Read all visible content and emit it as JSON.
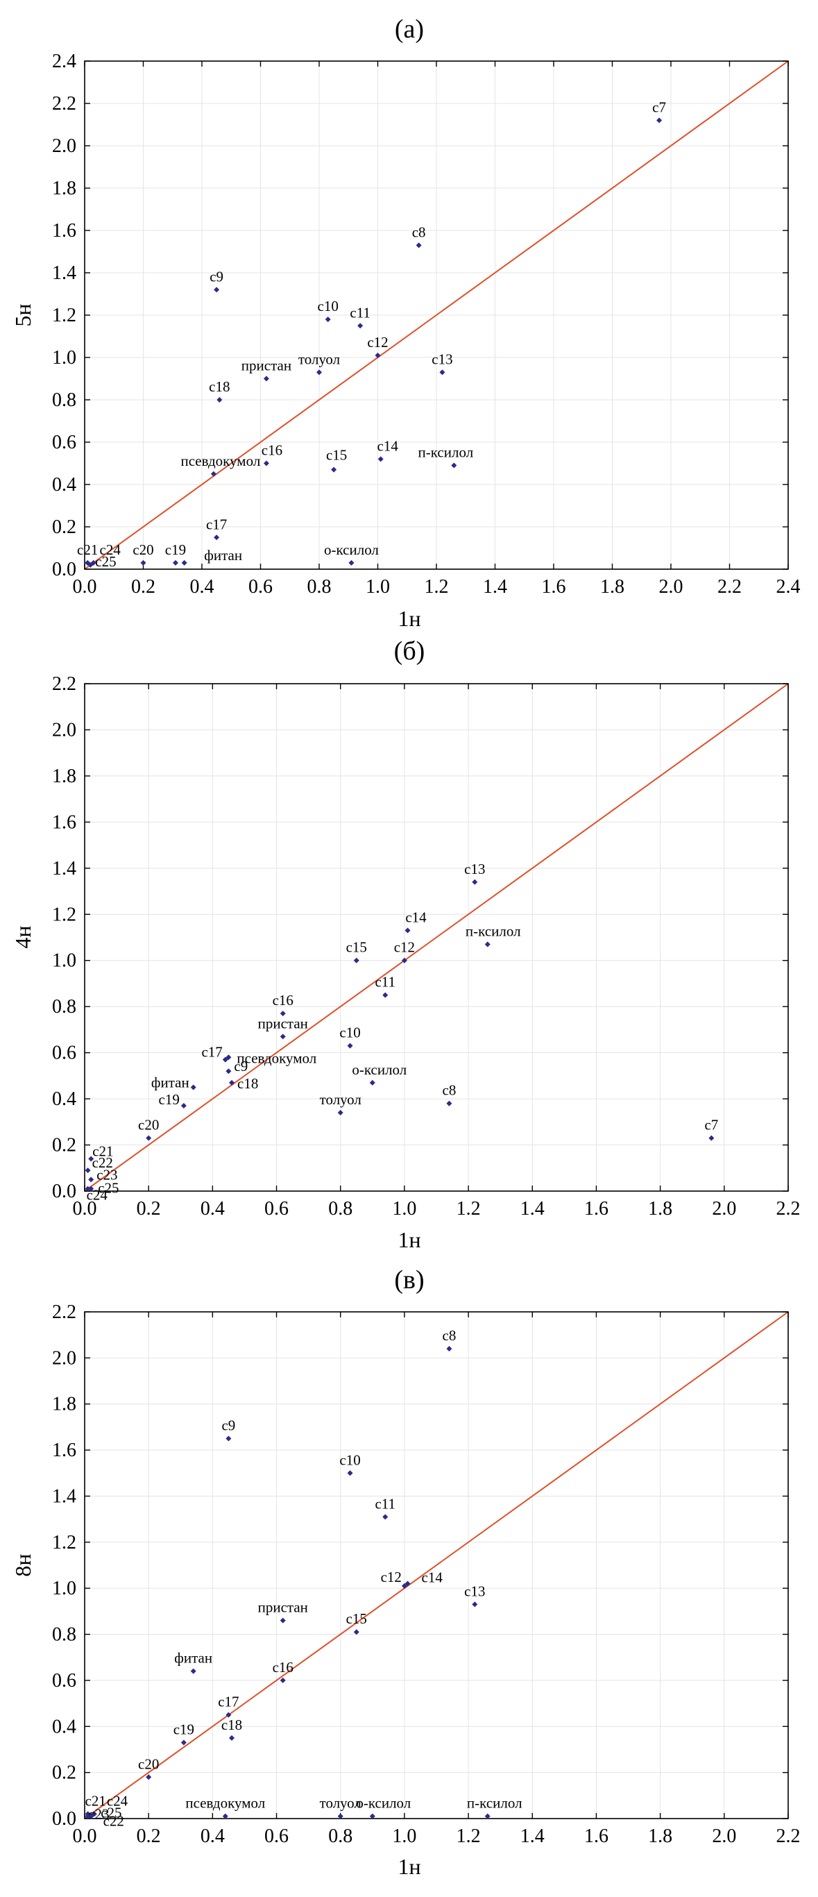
{
  "chart_data": [
    {
      "type": "scatter",
      "panel_label": "(а)",
      "xlabel": "1н",
      "ylabel": "5н",
      "xlim": [
        0,
        2.4
      ],
      "ylim": [
        0,
        2.4
      ],
      "xticks": [
        0.0,
        0.2,
        0.4,
        0.6,
        0.8,
        1.0,
        1.2,
        1.4,
        1.6,
        1.8,
        2.0,
        2.2,
        2.4
      ],
      "yticks": [
        0.0,
        0.2,
        0.4,
        0.6,
        0.8,
        1.0,
        1.2,
        1.4,
        1.6,
        1.8,
        2.0,
        2.2,
        2.4
      ],
      "grid": true,
      "reference_line": "y=x",
      "point_color": "#2b2b8a",
      "line_color": "#e0502a",
      "points": [
        {
          "label": "c7",
          "x": 1.96,
          "y": 2.12
        },
        {
          "label": "c8",
          "x": 1.14,
          "y": 1.53
        },
        {
          "label": "c9",
          "x": 0.45,
          "y": 1.32
        },
        {
          "label": "c10",
          "x": 0.83,
          "y": 1.18
        },
        {
          "label": "c11",
          "x": 0.94,
          "y": 1.15
        },
        {
          "label": "c12",
          "x": 1.0,
          "y": 1.01
        },
        {
          "label": "c13",
          "x": 1.22,
          "y": 0.93
        },
        {
          "label": "толуол",
          "x": 0.8,
          "y": 0.93
        },
        {
          "label": "пристан",
          "x": 0.62,
          "y": 0.9
        },
        {
          "label": "c18",
          "x": 0.46,
          "y": 0.8
        },
        {
          "label": "c14",
          "x": 1.01,
          "y": 0.52
        },
        {
          "label": "c16",
          "x": 0.62,
          "y": 0.5
        },
        {
          "label": "п-ксилол",
          "x": 1.26,
          "y": 0.49
        },
        {
          "label": "c15",
          "x": 0.85,
          "y": 0.47
        },
        {
          "label": "псевдокумол",
          "x": 0.44,
          "y": 0.45
        },
        {
          "label": "c17",
          "x": 0.45,
          "y": 0.15
        },
        {
          "label": "о-ксилол",
          "x": 0.91,
          "y": 0.03
        },
        {
          "label": "фитан",
          "x": 0.34,
          "y": 0.03
        },
        {
          "label": "c19",
          "x": 0.31,
          "y": 0.03
        },
        {
          "label": "c20",
          "x": 0.2,
          "y": 0.03
        },
        {
          "label": "c21",
          "x": 0.01,
          "y": 0.03
        },
        {
          "label": "c24",
          "x": 0.03,
          "y": 0.03
        },
        {
          "label": "c25",
          "x": 0.02,
          "y": 0.02
        }
      ]
    },
    {
      "type": "scatter",
      "panel_label": "(б)",
      "xlabel": "1н",
      "ylabel": "4н",
      "xlim": [
        0,
        2.2
      ],
      "ylim": [
        0,
        2.2
      ],
      "xticks": [
        0.0,
        0.2,
        0.4,
        0.6,
        0.8,
        1.0,
        1.2,
        1.4,
        1.6,
        1.8,
        2.0,
        2.2
      ],
      "yticks": [
        0.0,
        0.2,
        0.4,
        0.6,
        0.8,
        1.0,
        1.2,
        1.4,
        1.6,
        1.8,
        2.0,
        2.2
      ],
      "grid": true,
      "reference_line": "y=x",
      "point_color": "#2b2b8a",
      "line_color": "#e0502a",
      "points": [
        {
          "label": "c13",
          "x": 1.22,
          "y": 1.34
        },
        {
          "label": "c14",
          "x": 1.01,
          "y": 1.13
        },
        {
          "label": "п-ксилол",
          "x": 1.26,
          "y": 1.07
        },
        {
          "label": "c15",
          "x": 0.85,
          "y": 1.0
        },
        {
          "label": "c12",
          "x": 1.0,
          "y": 1.0
        },
        {
          "label": "c11",
          "x": 0.94,
          "y": 0.85
        },
        {
          "label": "c16",
          "x": 0.62,
          "y": 0.77
        },
        {
          "label": "пристан",
          "x": 0.62,
          "y": 0.67
        },
        {
          "label": "c10",
          "x": 0.83,
          "y": 0.63
        },
        {
          "label": "c17",
          "x": 0.44,
          "y": 0.57
        },
        {
          "label": "псевдокумол",
          "x": 0.45,
          "y": 0.58
        },
        {
          "label": "c9",
          "x": 0.45,
          "y": 0.52
        },
        {
          "label": "c18",
          "x": 0.46,
          "y": 0.47
        },
        {
          "label": "о-ксилол",
          "x": 0.9,
          "y": 0.47
        },
        {
          "label": "фитан",
          "x": 0.34,
          "y": 0.45
        },
        {
          "label": "c8",
          "x": 1.14,
          "y": 0.38
        },
        {
          "label": "c19",
          "x": 0.31,
          "y": 0.37
        },
        {
          "label": "толуол",
          "x": 0.8,
          "y": 0.34
        },
        {
          "label": "c20",
          "x": 0.2,
          "y": 0.23
        },
        {
          "label": "c7",
          "x": 1.96,
          "y": 0.23
        },
        {
          "label": "c21",
          "x": 0.02,
          "y": 0.14
        },
        {
          "label": "c22",
          "x": 0.01,
          "y": 0.09
        },
        {
          "label": "c23",
          "x": 0.02,
          "y": 0.05
        },
        {
          "label": "c25",
          "x": 0.02,
          "y": 0.01
        },
        {
          "label": "c24",
          "x": 0.01,
          "y": 0.01
        }
      ]
    },
    {
      "type": "scatter",
      "panel_label": "(в)",
      "xlabel": "1н",
      "ylabel": "8н",
      "xlim": [
        0,
        2.2
      ],
      "ylim": [
        0,
        2.2
      ],
      "xticks": [
        0.0,
        0.2,
        0.4,
        0.6,
        0.8,
        1.0,
        1.2,
        1.4,
        1.6,
        1.8,
        2.0,
        2.2
      ],
      "yticks": [
        0.0,
        0.2,
        0.4,
        0.6,
        0.8,
        1.0,
        1.2,
        1.4,
        1.6,
        1.8,
        2.0,
        2.2
      ],
      "grid": true,
      "reference_line": "y=x",
      "point_color": "#2b2b8a",
      "line_color": "#e0502a",
      "points": [
        {
          "label": "c8",
          "x": 1.14,
          "y": 2.04
        },
        {
          "label": "c9",
          "x": 0.45,
          "y": 1.65
        },
        {
          "label": "c10",
          "x": 0.83,
          "y": 1.5
        },
        {
          "label": "c11",
          "x": 0.94,
          "y": 1.31
        },
        {
          "label": "c14",
          "x": 1.01,
          "y": 1.02
        },
        {
          "label": "c12",
          "x": 1.0,
          "y": 1.01
        },
        {
          "label": "c13",
          "x": 1.22,
          "y": 0.93
        },
        {
          "label": "пристан",
          "x": 0.62,
          "y": 0.86
        },
        {
          "label": "c15",
          "x": 0.85,
          "y": 0.81
        },
        {
          "label": "фитан",
          "x": 0.34,
          "y": 0.64
        },
        {
          "label": "c16",
          "x": 0.62,
          "y": 0.6
        },
        {
          "label": "c17",
          "x": 0.45,
          "y": 0.45
        },
        {
          "label": "c18",
          "x": 0.46,
          "y": 0.35
        },
        {
          "label": "c19",
          "x": 0.31,
          "y": 0.33
        },
        {
          "label": "c20",
          "x": 0.2,
          "y": 0.18
        },
        {
          "label": "псевдокумол",
          "x": 0.44,
          "y": 0.01
        },
        {
          "label": "толуол",
          "x": 0.8,
          "y": 0.01
        },
        {
          "label": "о-ксилол",
          "x": 0.9,
          "y": 0.01
        },
        {
          "label": "п-ксилол",
          "x": 1.26,
          "y": 0.01
        },
        {
          "label": "c21",
          "x": 0.01,
          "y": 0.02
        },
        {
          "label": "c24",
          "x": 0.03,
          "y": 0.02
        },
        {
          "label": "c23",
          "x": 0.02,
          "y": 0.01
        },
        {
          "label": "c25",
          "x": 0.02,
          "y": 0.01
        },
        {
          "label": "c22",
          "x": 0.01,
          "y": 0.01
        }
      ]
    }
  ]
}
